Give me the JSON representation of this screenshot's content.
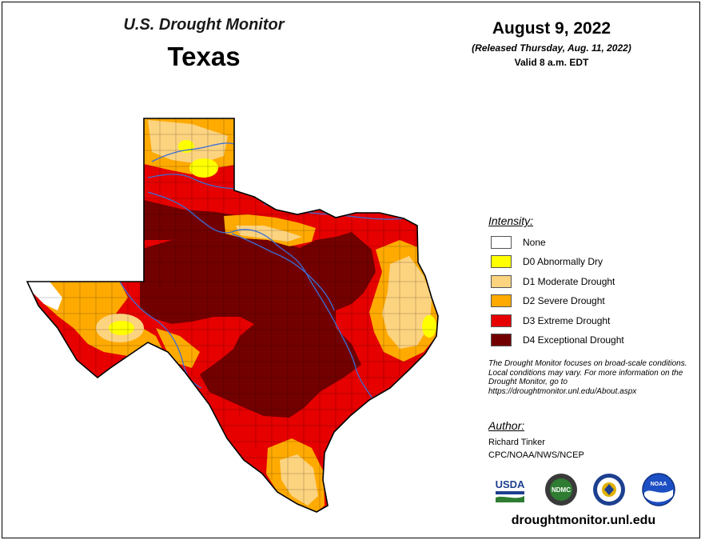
{
  "header": {
    "title": "U.S. Drought Monitor",
    "state": "Texas",
    "date": "August 9, 2022",
    "released": "(Released Thursday, Aug. 11, 2022)",
    "valid": "Valid 8 a.m. EDT"
  },
  "legend": {
    "title": "Intensity:",
    "items": [
      {
        "label": "None",
        "color": "#ffffff"
      },
      {
        "label": "D0 Abnormally Dry",
        "color": "#ffff00"
      },
      {
        "label": "D1 Moderate Drought",
        "color": "#fcd37f"
      },
      {
        "label": "D2 Severe Drought",
        "color": "#ffaa00"
      },
      {
        "label": "D3 Extreme Drought",
        "color": "#e60000"
      },
      {
        "label": "D4 Exceptional Drought",
        "color": "#730000"
      }
    ]
  },
  "note": "The Drought Monitor focuses on broad-scale conditions. Local conditions may vary. For more information on the Drought Monitor, go to https://droughtmonitor.unl.edu/About.aspx",
  "author": {
    "title": "Author:",
    "name": "Richard Tinker",
    "org": "CPC/NOAA/NWS/NCEP"
  },
  "logos": {
    "usda": "USDA",
    "ndmc": "NDMC",
    "noaa": "NOAA"
  },
  "footer_url": "droughtmonitor.unl.edu"
}
